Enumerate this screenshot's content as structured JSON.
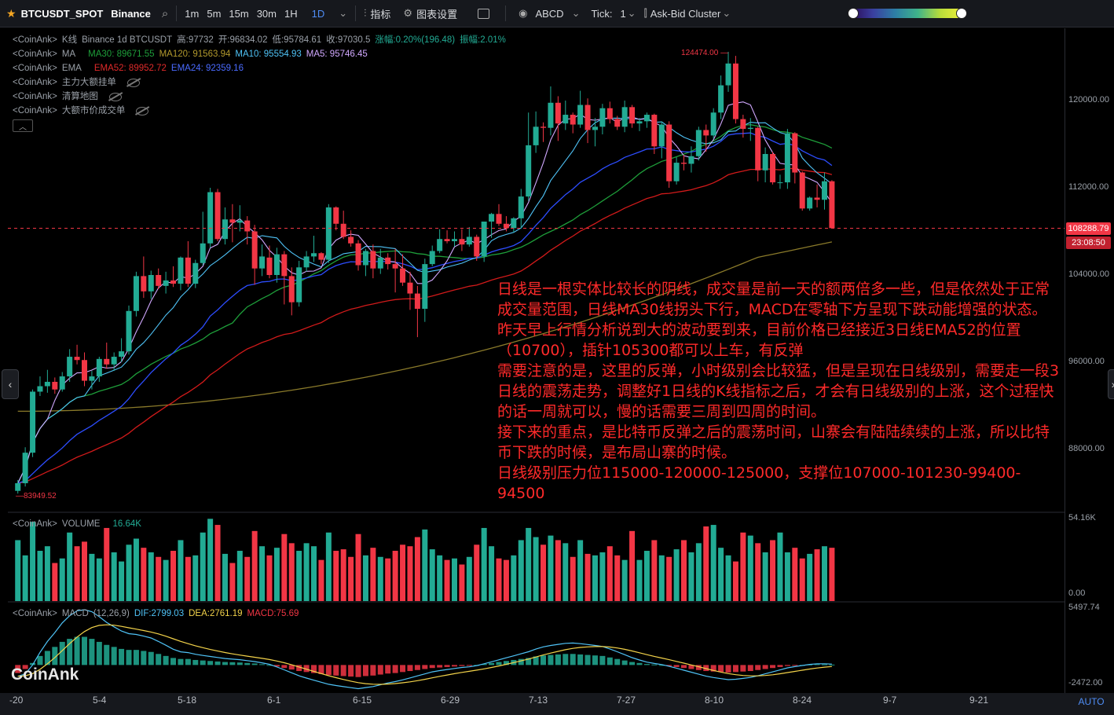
{
  "toolbar": {
    "symbol": "BTCUSDT_SPOT",
    "exchange": "Binance",
    "intervals": [
      "1m",
      "5m",
      "15m",
      "30m",
      "1H",
      "1D"
    ],
    "active_interval": "1D",
    "indicators_label": "指标",
    "settings_label": "图表设置",
    "abcd_label": "ABCD",
    "tick_label": "Tick:",
    "tick_value": "1",
    "cluster_label": "Ask-Bid Cluster"
  },
  "legend": {
    "kline": {
      "prefix": "<CoinAnk>",
      "name": "K线",
      "text": "Binance 1d BTCUSDT",
      "high": "高:97732",
      "open": "开:96834.02",
      "low": "低:95784.61",
      "close": "收:97030.5",
      "chg": "涨幅:0.20%(196.48)",
      "amp": "振幅:2.01%"
    },
    "ma": {
      "prefix": "<CoinAnk>",
      "name": "MA",
      "ma30": "MA30: 89671.55",
      "ma120": "MA120: 91563.94",
      "ma10": "MA10: 95554.93",
      "ma5": "MA5: 95746.45"
    },
    "ema": {
      "prefix": "<CoinAnk>",
      "name": "EMA",
      "ema52": "EMA52: 89952.72",
      "ema24": "EMA24: 92359.16"
    },
    "ind1": {
      "prefix": "<CoinAnk>",
      "name": "主力大额挂单"
    },
    "ind2": {
      "prefix": "<CoinAnk>",
      "name": "清算地图"
    },
    "ind3": {
      "prefix": "<CoinAnk>",
      "name": "大额市价成交单"
    },
    "volume": {
      "prefix": "<CoinAnk>",
      "name": "VOLUME",
      "value": "16.64K"
    },
    "macd": {
      "prefix": "<CoinAnk>",
      "name": "MACD",
      "params": "(12,26,9)",
      "dif": "DIF:2799.03",
      "dea": "DEA:2761.19",
      "macd": "MACD:75.69"
    }
  },
  "price_axis": [
    "120000.00",
    "112000.00",
    "104000.00",
    "96000.00",
    "88000.00"
  ],
  "volume_axis": [
    "54.16K",
    "0.00"
  ],
  "macd_axis": [
    "5497.74",
    "-2472.00"
  ],
  "current_price": "108288.79",
  "countdown": "23:08:50",
  "high_label": "124474.00",
  "low_label": "83949.52",
  "x_labels": [
    "-20",
    "5-4",
    "5-18",
    "6-1",
    "6-15",
    "6-29",
    "7-13",
    "7-27",
    "8-10",
    "8-24",
    "9-7",
    "9-21"
  ],
  "annotation": [
    "日线是一根实体比较长的阴线，成交量是前一天的额两倍多一些，但是依然处于正常成交量范围，日线MA30线拐头下行，MACD在零轴下方呈现下跌动能增强的状态。",
    "昨天早上行情分析说到大的波动要到来，目前价格已经接近3日线EMA52的位置（10700），插针105300都可以上车，有反弹",
    "需要注意的是，这里的反弹，小时级别会比较猛，但是呈现在日线级别，需要走一段3日线的震荡走势，调整好1日线的K线指标之后，才会有日线级别的上涨，这个过程快的话一周就可以，慢的话需要三周到四周的时间。",
    "接下来的重点，是比特币反弹之后的震荡时间，山寨会有陆陆续续的上涨，所以比特币下跌的时候，是布局山寨的时候。",
    "日线级别压力位115000-120000-125000，支撑位107000-101230-99400-94500"
  ],
  "logo_text": "CoinAnk",
  "auto_label": "AUTO",
  "colors": {
    "up": "#22ab94",
    "down": "#f23645",
    "ma5": "#d1a8ff",
    "ma10": "#4fc3f7",
    "ma30": "#1e9e3a",
    "ema24": "#2d4dff",
    "ema52": "#d11a1a",
    "ma120": "#8a7a2a"
  },
  "chart_data": {
    "type": "candlestick",
    "x_start": "2025-04-20",
    "x_end": "2025-08-29",
    "price_range": [
      83949.52,
      124474.0
    ],
    "ohlc": [
      [
        84200,
        85200,
        83949.52,
        84900
      ],
      [
        84900,
        88200,
        84600,
        87700
      ],
      [
        87700,
        93500,
        87300,
        93300
      ],
      [
        93300,
        94700,
        92900,
        93800
      ],
      [
        93800,
        95300,
        93200,
        94200
      ],
      [
        94200,
        94600,
        93100,
        93500
      ],
      [
        93500,
        95100,
        93300,
        94700
      ],
      [
        94700,
        97200,
        94200,
        96500
      ],
      [
        96500,
        97600,
        95800,
        96200
      ],
      [
        96200,
        96900,
        93800,
        94300
      ],
      [
        94300,
        95200,
        93500,
        94700
      ],
      [
        94700,
        96500,
        94200,
        96300
      ],
      [
        96300,
        97800,
        95400,
        95800
      ],
      [
        95800,
        96900,
        95200,
        96500
      ],
      [
        96500,
        98200,
        96000,
        97000
      ],
      [
        97000,
        101200,
        96700,
        100700
      ],
      [
        100700,
        104300,
        100200,
        103900
      ],
      [
        103900,
        105700,
        101900,
        102500
      ],
      [
        102500,
        104400,
        101800,
        104000
      ],
      [
        104000,
        104600,
        102700,
        103000
      ],
      [
        103000,
        104300,
        102300,
        103500
      ],
      [
        103500,
        104800,
        102900,
        103200
      ],
      [
        103200,
        105700,
        102600,
        105600
      ],
      [
        105600,
        107100,
        102900,
        103200
      ],
      [
        103200,
        105400,
        102800,
        105100
      ],
      [
        105100,
        109800,
        104900,
        106900
      ],
      [
        106900,
        112000,
        106500,
        111600
      ],
      [
        111600,
        111900,
        107100,
        107300
      ],
      [
        107300,
        110200,
        106800,
        109100
      ],
      [
        109100,
        110500,
        107000,
        108800
      ],
      [
        108800,
        110400,
        108000,
        109000
      ],
      [
        109000,
        109400,
        106800,
        108000
      ],
      [
        108000,
        108600,
        103100,
        104600
      ],
      [
        104600,
        106800,
        103900,
        105700
      ],
      [
        105600,
        106700,
        103700,
        104000
      ],
      [
        104000,
        106500,
        103300,
        105900
      ],
      [
        105900,
        106200,
        101300,
        103900
      ],
      [
        103900,
        104700,
        100300,
        101500
      ],
      [
        101500,
        105300,
        101100,
        104700
      ],
      [
        104700,
        106200,
        104300,
        105700
      ],
      [
        105700,
        107600,
        105200,
        106000
      ],
      [
        106000,
        106100,
        105000,
        105400
      ],
      [
        105400,
        110500,
        105100,
        110200
      ],
      [
        110200,
        110300,
        108100,
        108700
      ],
      [
        108700,
        109900,
        107300,
        107500
      ],
      [
        107500,
        108100,
        106600,
        106900
      ],
      [
        106900,
        107200,
        104400,
        104900
      ],
      [
        104900,
        106400,
        103900,
        106200
      ],
      [
        106200,
        106800,
        103700,
        104600
      ],
      [
        104600,
        106400,
        104100,
        105600
      ],
      [
        105600,
        106000,
        104500,
        105000
      ],
      [
        105000,
        106400,
        102400,
        104600
      ],
      [
        104600,
        105900,
        103000,
        103300
      ],
      [
        103300,
        104300,
        100800,
        102300
      ],
      [
        102300,
        103000,
        98300,
        100900
      ],
      [
        100900,
        105500,
        99700,
        105000
      ],
      [
        105000,
        106700,
        104800,
        106200
      ],
      [
        106200,
        108200,
        106000,
        107300
      ],
      [
        107300,
        108100,
        106900,
        107100
      ],
      [
        107100,
        108000,
        106600,
        107300
      ],
      [
        107300,
        108200,
        106200,
        106800
      ],
      [
        106800,
        108400,
        106600,
        107500
      ],
      [
        107500,
        107700,
        105300,
        105700
      ],
      [
        105700,
        108900,
        105200,
        108900
      ],
      [
        108900,
        109700,
        107400,
        109600
      ],
      [
        109600,
        110500,
        108500,
        108700
      ],
      [
        108700,
        109400,
        108000,
        108300
      ],
      [
        108300,
        109300,
        107900,
        109200
      ],
      [
        109200,
        111900,
        108300,
        111200
      ],
      [
        111200,
        118900,
        110800,
        115900
      ],
      [
        115900,
        119000,
        115200,
        117600
      ],
      [
        117600,
        118000,
        116200,
        117500
      ],
      [
        117500,
        121300,
        116800,
        119800
      ],
      [
        119800,
        120400,
        116300,
        117900
      ],
      [
        117900,
        120000,
        117300,
        118700
      ],
      [
        118700,
        118900,
        117000,
        117800
      ],
      [
        117800,
        120900,
        117500,
        119600
      ],
      [
        119600,
        120200,
        116100,
        117300
      ],
      [
        117300,
        118400,
        115800,
        117600
      ],
      [
        117600,
        119700,
        116900,
        119300
      ],
      [
        119300,
        119900,
        117900,
        118300
      ],
      [
        118300,
        118600,
        117300,
        117600
      ],
      [
        117600,
        120000,
        117100,
        119400
      ],
      [
        119400,
        119600,
        117500,
        117900
      ],
      [
        117900,
        118400,
        117200,
        118100
      ],
      [
        118100,
        118900,
        117500,
        118700
      ],
      [
        118700,
        118800,
        115100,
        115800
      ],
      [
        115800,
        118100,
        114700,
        117800
      ],
      [
        117800,
        118100,
        112000,
        112600
      ],
      [
        112600,
        114800,
        112300,
        114300
      ],
      [
        114300,
        115000,
        113600,
        114200
      ],
      [
        114200,
        115800,
        113400,
        114900
      ],
      [
        114900,
        117600,
        114500,
        117300
      ],
      [
        117300,
        117800,
        115300,
        116800
      ],
      [
        116800,
        119300,
        116500,
        118900
      ],
      [
        118900,
        122300,
        118300,
        121400
      ],
      [
        121400,
        124474,
        120800,
        123400
      ],
      [
        123400,
        124100,
        117900,
        118300
      ],
      [
        118300,
        118700,
        116600,
        117400
      ],
      [
        117400,
        118400,
        116300,
        117500
      ],
      [
        117500,
        117600,
        112600,
        113600
      ],
      [
        113600,
        115700,
        112500,
        115100
      ],
      [
        115100,
        115300,
        112300,
        112500
      ],
      [
        112500,
        113200,
        111900,
        112500
      ],
      [
        112500,
        117400,
        111900,
        117000
      ],
      [
        117000,
        117100,
        112400,
        113400
      ],
      [
        113400,
        113500,
        109900,
        110100
      ],
      [
        110100,
        111200,
        109900,
        111100
      ],
      [
        111100,
        112300,
        110200,
        110900
      ],
      [
        110900,
        113400,
        110000,
        112600
      ],
      [
        112600,
        112700,
        108288.79,
        108300
      ]
    ],
    "volume_k": [
      40,
      30,
      52,
      33,
      36,
      25,
      28,
      45,
      36,
      39,
      31,
      28,
      48,
      32,
      26,
      37,
      41,
      35,
      32,
      29,
      27,
      33,
      40,
      29,
      30,
      45,
      54,
      50,
      31,
      25,
      33,
      29,
      46,
      36,
      30,
      35,
      44,
      38,
      33,
      38,
      36,
      27,
      45,
      33,
      34,
      29,
      44,
      30,
      35,
      29,
      28,
      33,
      37,
      36,
      42,
      47,
      34,
      30,
      27,
      28,
      24,
      29,
      37,
      48,
      36,
      28,
      27,
      30,
      40,
      48,
      42,
      37,
      43,
      40,
      38,
      29,
      40,
      31,
      30,
      32,
      36,
      30,
      27,
      46,
      27,
      33,
      40,
      30,
      29,
      34,
      40,
      32,
      38,
      49,
      50,
      35,
      30,
      26,
      45,
      43,
      38,
      32,
      40,
      45,
      32,
      35,
      28,
      31,
      34,
      36,
      35
    ],
    "macd_hist": [
      -800,
      -400,
      200,
      900,
      1400,
      1800,
      2300,
      2600,
      2800,
      2800,
      2600,
      2300,
      2000,
      1800,
      1600,
      1500,
      1500,
      1400,
      1300,
      1100,
      900,
      700,
      600,
      600,
      500,
      450,
      400,
      350,
      300,
      280,
      250,
      200,
      150,
      80,
      0,
      -150,
      -300,
      -450,
      -600,
      -700,
      -800,
      -900,
      -1000,
      -1050,
      -1100,
      -1150,
      -1200,
      -1100,
      -1050,
      -950,
      -850,
      -800,
      -700,
      -600,
      -500,
      -400,
      -300,
      -250,
      -200,
      -150,
      -100,
      -80,
      0,
      100,
      200,
      300,
      400,
      500,
      600,
      700,
      850,
      950,
      1000,
      1050,
      1100,
      1100,
      1050,
      1000,
      950,
      900,
      750,
      600,
      450,
      300,
      200,
      100,
      50,
      0,
      -100,
      -200,
      -300,
      -400,
      -500,
      -600,
      -650,
      -700,
      -750,
      -700,
      -650,
      -600,
      -500,
      -400,
      -300,
      -200,
      -100,
      -50,
      0,
      50,
      75.69,
      60,
      40
    ],
    "macd_range": [
      -2472.0,
      5497.74
    ]
  }
}
